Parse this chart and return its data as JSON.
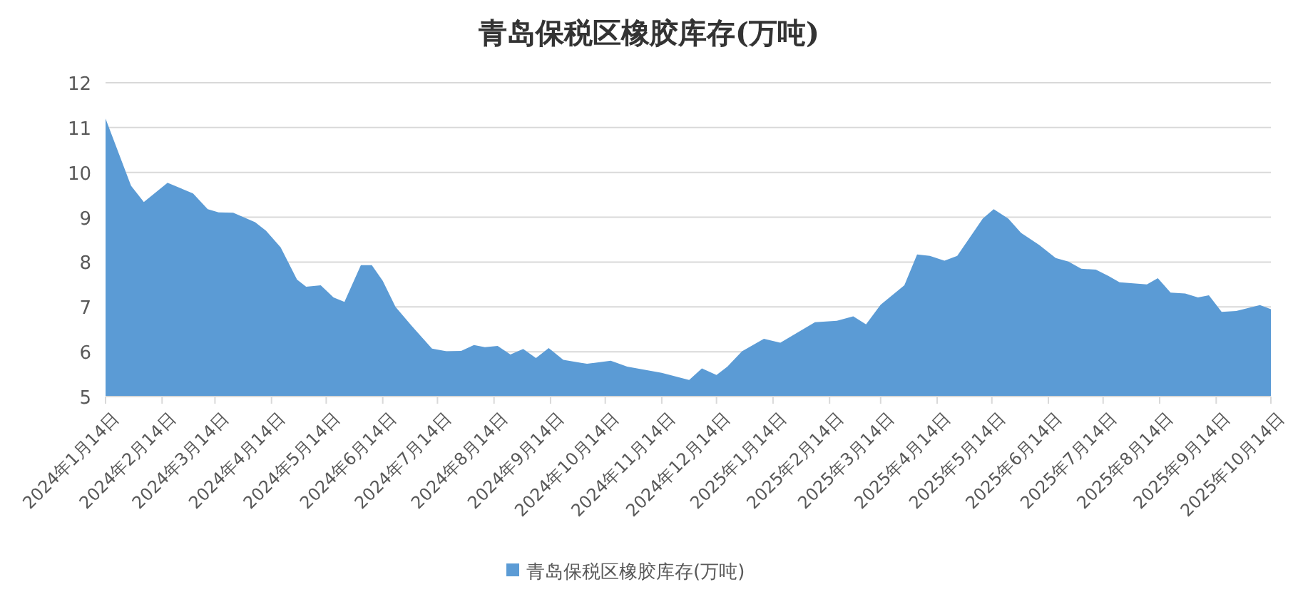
{
  "chart_data": {
    "type": "area",
    "title": "青岛保税区橡胶库存(万吨)",
    "x": [
      "2024-01-14",
      "2024-01-28",
      "2024-02-04",
      "2024-02-17",
      "2024-03-02",
      "2024-03-10",
      "2024-03-16",
      "2024-03-24",
      "2024-04-05",
      "2024-04-11",
      "2024-04-19",
      "2024-04-28",
      "2024-05-03",
      "2024-05-11",
      "2024-05-18",
      "2024-05-24",
      "2024-06-02",
      "2024-06-08",
      "2024-06-14",
      "2024-06-21",
      "2024-06-30",
      "2024-07-11",
      "2024-07-19",
      "2024-07-27",
      "2024-08-03",
      "2024-08-09",
      "2024-08-16",
      "2024-08-23",
      "2024-08-30",
      "2024-09-06",
      "2024-09-13",
      "2024-09-21",
      "2024-10-04",
      "2024-10-17",
      "2024-10-26",
      "2024-11-14",
      "2024-11-29",
      "2024-12-06",
      "2024-12-14",
      "2024-12-20",
      "2024-12-28",
      "2025-01-09",
      "2025-01-18",
      "2025-02-06",
      "2025-02-18",
      "2025-02-27",
      "2025-03-06",
      "2025-03-14",
      "2025-03-27",
      "2025-04-03",
      "2025-04-10",
      "2025-04-18",
      "2025-04-25",
      "2025-05-09",
      "2025-05-15",
      "2025-05-23",
      "2025-05-30",
      "2025-06-09",
      "2025-06-18",
      "2025-06-25",
      "2025-07-02",
      "2025-07-10",
      "2025-07-17",
      "2025-07-23",
      "2025-08-07",
      "2025-08-13",
      "2025-08-20",
      "2025-08-28",
      "2025-09-04",
      "2025-09-10",
      "2025-09-17",
      "2025-09-25",
      "2025-10-08",
      "2025-10-14"
    ],
    "series": [
      {
        "name": "青岛保税区橡胶库存(万吨)",
        "color": "#5b9bd5",
        "values": [
          11.2,
          9.7,
          9.34,
          9.77,
          9.53,
          9.18,
          9.11,
          9.1,
          8.89,
          8.7,
          8.33,
          7.61,
          7.45,
          7.48,
          7.21,
          7.11,
          7.93,
          7.93,
          7.58,
          7.0,
          6.57,
          6.07,
          6.01,
          6.02,
          6.15,
          6.1,
          6.13,
          5.94,
          6.06,
          5.86,
          6.08,
          5.82,
          5.73,
          5.8,
          5.67,
          5.53,
          5.37,
          5.63,
          5.48,
          5.67,
          6.01,
          6.29,
          6.2,
          6.66,
          6.69,
          6.79,
          6.61,
          7.05,
          7.48,
          8.17,
          8.14,
          8.03,
          8.14,
          8.97,
          9.18,
          8.97,
          8.65,
          8.38,
          8.09,
          8.01,
          7.85,
          7.83,
          7.69,
          7.55,
          7.5,
          7.64,
          7.32,
          7.3,
          7.21,
          7.26,
          6.89,
          6.91,
          7.04,
          6.95
        ]
      }
    ],
    "xlim": [
      "2024-01-14",
      "2025-10-14"
    ],
    "xticks": [
      {
        "value": "2024-01-14",
        "label": "2024年1月14日"
      },
      {
        "value": "2024-02-14",
        "label": "2024年2月14日"
      },
      {
        "value": "2024-03-14",
        "label": "2024年3月14日"
      },
      {
        "value": "2024-04-14",
        "label": "2024年4月14日"
      },
      {
        "value": "2024-05-14",
        "label": "2024年5月14日"
      },
      {
        "value": "2024-06-14",
        "label": "2024年6月14日"
      },
      {
        "value": "2024-07-14",
        "label": "2024年7月14日"
      },
      {
        "value": "2024-08-14",
        "label": "2024年8月14日"
      },
      {
        "value": "2024-09-14",
        "label": "2024年9月14日"
      },
      {
        "value": "2024-10-14",
        "label": "2024年10月14日"
      },
      {
        "value": "2024-11-14",
        "label": "2024年11月14日"
      },
      {
        "value": "2024-12-14",
        "label": "2024年12月14日"
      },
      {
        "value": "2025-01-14",
        "label": "2025年1月14日"
      },
      {
        "value": "2025-02-14",
        "label": "2025年2月14日"
      },
      {
        "value": "2025-03-14",
        "label": "2025年3月14日"
      },
      {
        "value": "2025-04-14",
        "label": "2025年4月14日"
      },
      {
        "value": "2025-05-14",
        "label": "2025年5月14日"
      },
      {
        "value": "2025-06-14",
        "label": "2025年6月14日"
      },
      {
        "value": "2025-07-14",
        "label": "2025年7月14日"
      },
      {
        "value": "2025-08-14",
        "label": "2025年8月14日"
      },
      {
        "value": "2025-09-14",
        "label": "2025年9月14日"
      },
      {
        "value": "2025-10-14",
        "label": "2025年10月14日"
      }
    ],
    "ylim": [
      5,
      12
    ],
    "yticks": [
      5,
      6,
      7,
      8,
      9,
      10,
      11,
      12
    ],
    "grid": "y",
    "legend": "bottom"
  }
}
